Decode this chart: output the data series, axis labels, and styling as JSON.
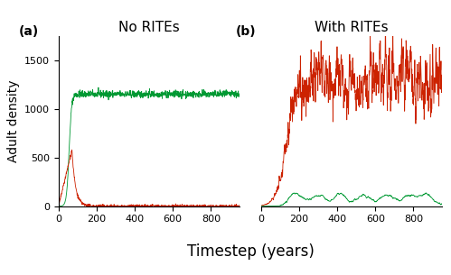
{
  "title_a": "No RITEs",
  "title_b": "With RITEs",
  "label_a": "(a)",
  "label_b": "(b)",
  "xlabel": "Timestep (years)",
  "ylabel": "Adult density",
  "ylim": [
    0,
    1750
  ],
  "xlim": [
    0,
    950
  ],
  "yticks": [
    0,
    500,
    1000,
    1500
  ],
  "xticks": [
    0,
    200,
    400,
    600,
    800
  ],
  "color_green": "#009933",
  "color_red": "#cc2200",
  "n_steps": 1000,
  "title_fontsize": 11,
  "label_fontsize": 10,
  "tick_fontsize": 8,
  "ylabel_fontsize": 10
}
